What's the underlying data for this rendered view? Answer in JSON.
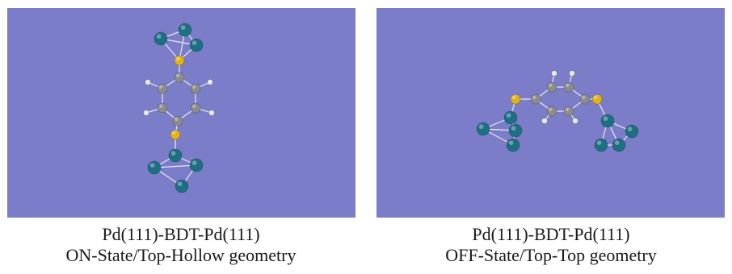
{
  "colors": {
    "background": "#7b7dc8",
    "palladium": "#1d6f84",
    "sulfur": "#e0b31b",
    "carbon": "#8c8c8c",
    "hydrogen": "#e6e6e6",
    "bond": "#e8e8f2"
  },
  "panels": [
    {
      "state": "ON",
      "title": "Pd(111)-BDT-Pd(111)",
      "subtitle": "ON-State/Top-Hollow geometry"
    },
    {
      "state": "OFF",
      "title": "Pd(111)-BDT-Pd(111)",
      "subtitle": "OFF-State/Top-Top geometry"
    }
  ]
}
